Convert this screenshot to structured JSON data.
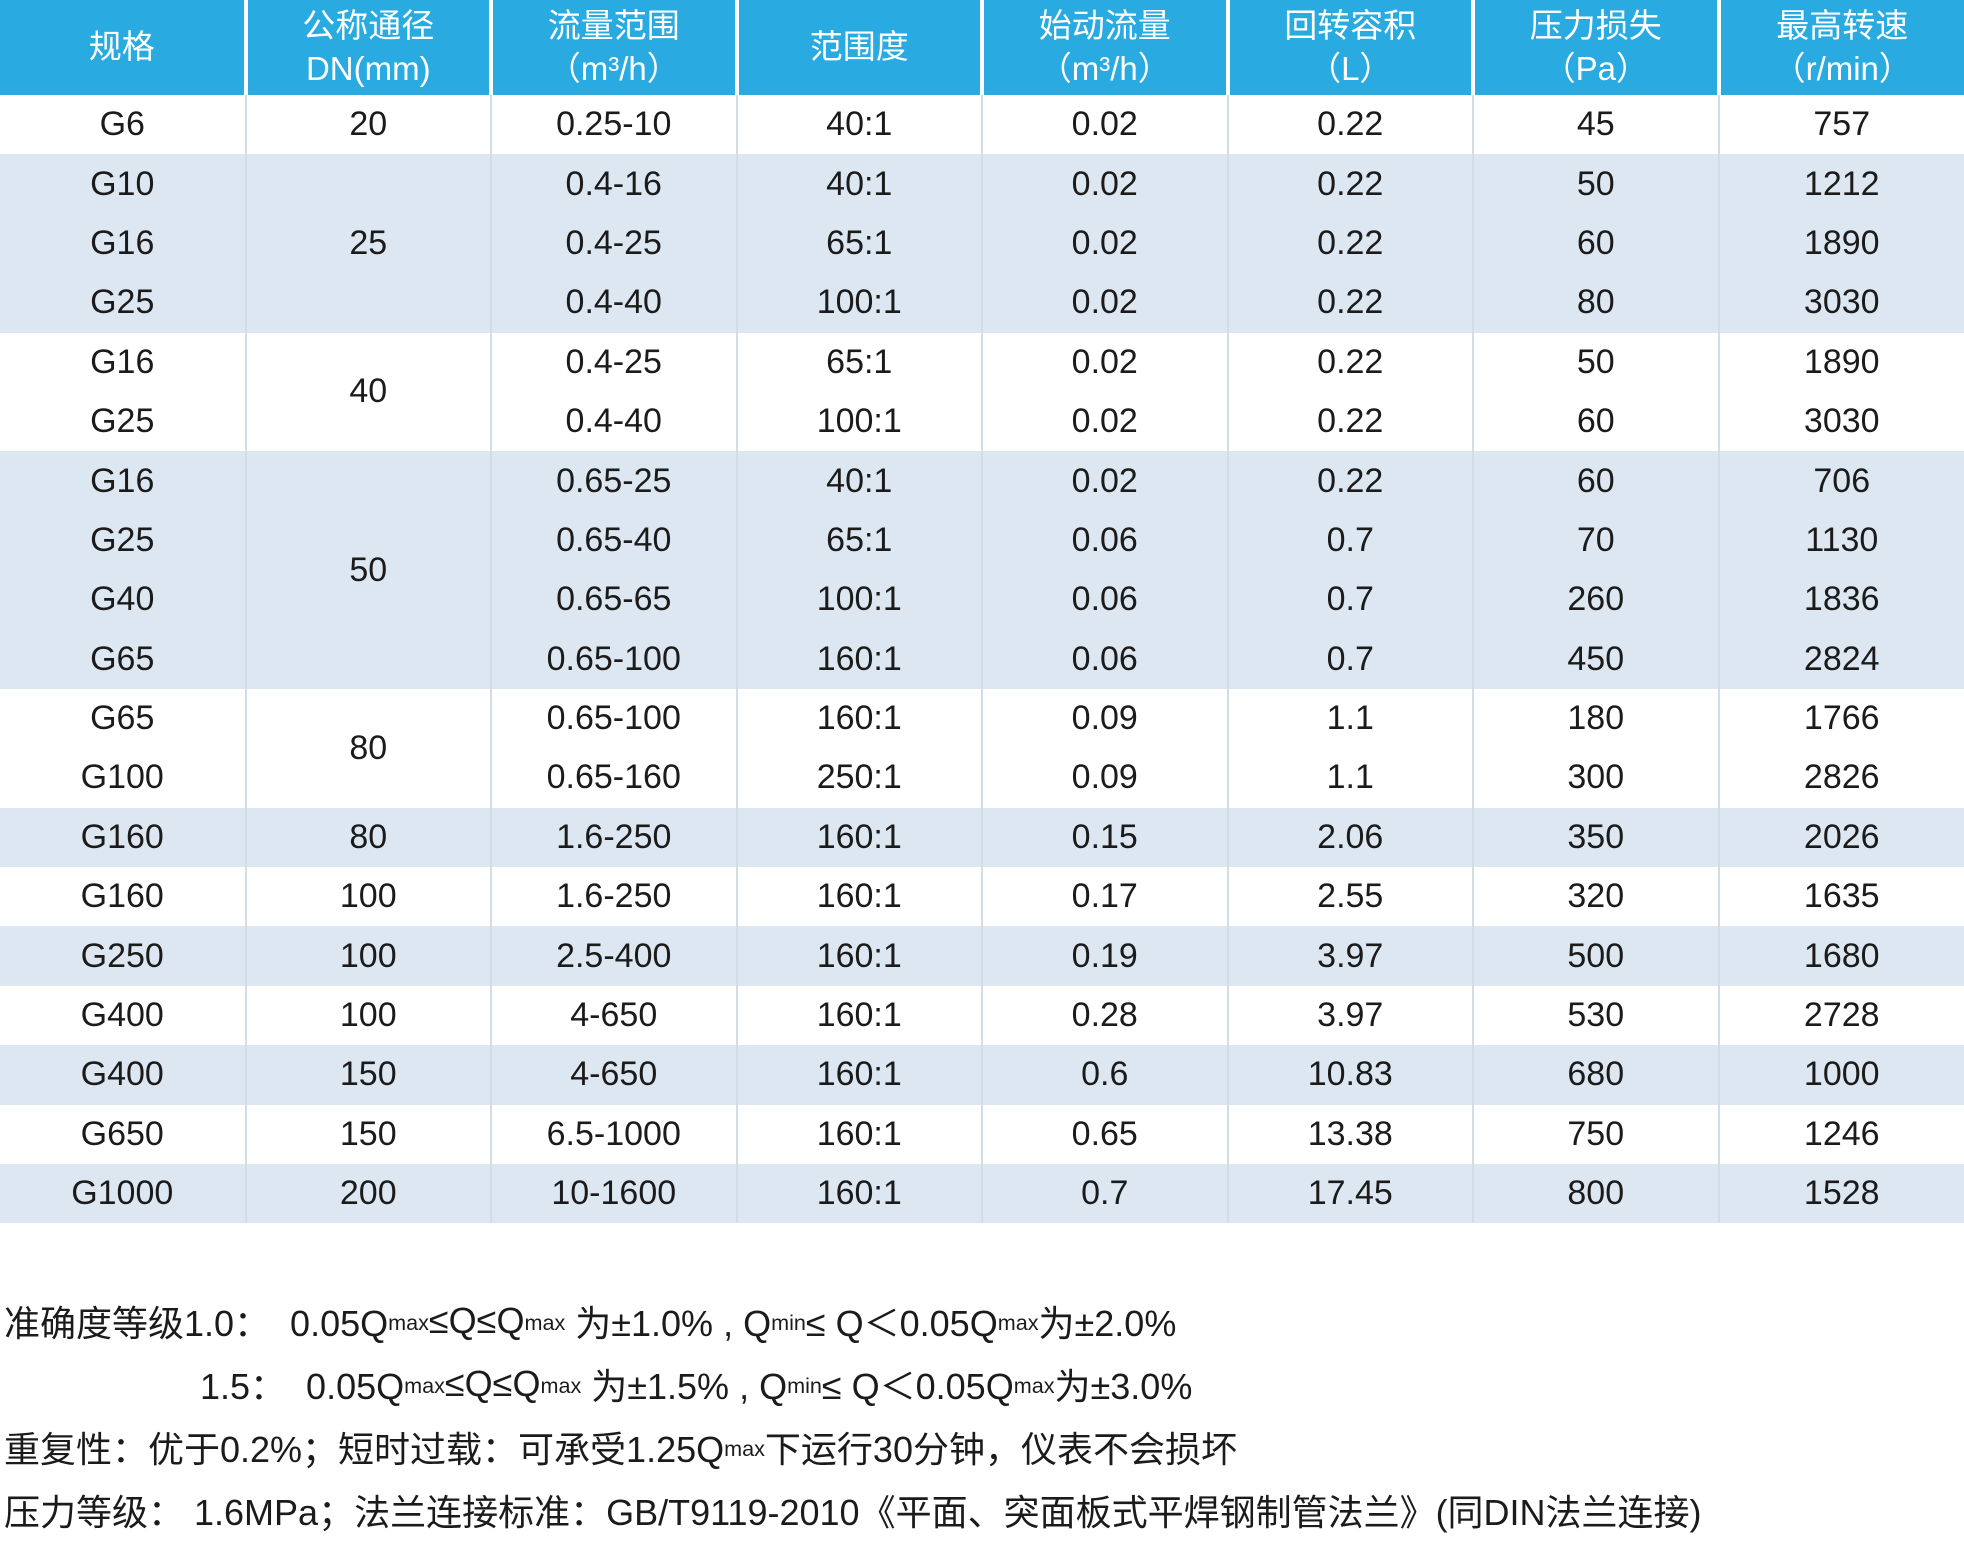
{
  "colors": {
    "header_bg": "#29abe2",
    "header_text": "#ffffff",
    "band_bg": "#dde7f1",
    "row_bg": "#ffffff",
    "body_text": "#1b1b1b",
    "grid_line": "#d4dce4"
  },
  "table": {
    "headers": [
      {
        "line1": "规格",
        "line2": ""
      },
      {
        "line1": "公称通径",
        "line2": "DN(mm)"
      },
      {
        "line1": "流量范围",
        "line2": "（m³/h）"
      },
      {
        "line1": "范围度",
        "line2": ""
      },
      {
        "line1": "始动流量",
        "line2": "（m³/h）"
      },
      {
        "line1": "回转容积",
        "line2": "（L）"
      },
      {
        "line1": "压力损失",
        "line2": "（Pa）"
      },
      {
        "line1": "最高转速",
        "line2": "（r/min）"
      }
    ],
    "groups": [
      {
        "dn": "20",
        "shade": "white",
        "rows": [
          {
            "spec": "G6",
            "flow_range": "0.25-10",
            "rangeability": "40:1",
            "start_flow": "0.02",
            "rotary_volume": "0.22",
            "pressure_loss": "45",
            "max_speed": "757"
          }
        ]
      },
      {
        "dn": "25",
        "shade": "blue",
        "rows": [
          {
            "spec": "G10",
            "flow_range": "0.4-16",
            "rangeability": "40:1",
            "start_flow": "0.02",
            "rotary_volume": "0.22",
            "pressure_loss": "50",
            "max_speed": "1212"
          },
          {
            "spec": "G16",
            "flow_range": "0.4-25",
            "rangeability": "65:1",
            "start_flow": "0.02",
            "rotary_volume": "0.22",
            "pressure_loss": "60",
            "max_speed": "1890"
          },
          {
            "spec": "G25",
            "flow_range": "0.4-40",
            "rangeability": "100:1",
            "start_flow": "0.02",
            "rotary_volume": "0.22",
            "pressure_loss": "80",
            "max_speed": "3030"
          }
        ]
      },
      {
        "dn": "40",
        "shade": "white",
        "rows": [
          {
            "spec": "G16",
            "flow_range": "0.4-25",
            "rangeability": "65:1",
            "start_flow": "0.02",
            "rotary_volume": "0.22",
            "pressure_loss": "50",
            "max_speed": "1890"
          },
          {
            "spec": "G25",
            "flow_range": "0.4-40",
            "rangeability": "100:1",
            "start_flow": "0.02",
            "rotary_volume": "0.22",
            "pressure_loss": "60",
            "max_speed": "3030"
          }
        ]
      },
      {
        "dn": "50",
        "shade": "blue",
        "rows": [
          {
            "spec": "G16",
            "flow_range": "0.65-25",
            "rangeability": "40:1",
            "start_flow": "0.02",
            "rotary_volume": "0.22",
            "pressure_loss": "60",
            "max_speed": "706"
          },
          {
            "spec": "G25",
            "flow_range": "0.65-40",
            "rangeability": "65:1",
            "start_flow": "0.06",
            "rotary_volume": "0.7",
            "pressure_loss": "70",
            "max_speed": "1130"
          },
          {
            "spec": "G40",
            "flow_range": "0.65-65",
            "rangeability": "100:1",
            "start_flow": "0.06",
            "rotary_volume": "0.7",
            "pressure_loss": "260",
            "max_speed": "1836"
          },
          {
            "spec": "G65",
            "flow_range": "0.65-100",
            "rangeability": "160:1",
            "start_flow": "0.06",
            "rotary_volume": "0.7",
            "pressure_loss": "450",
            "max_speed": "2824"
          }
        ]
      },
      {
        "dn": "80",
        "shade": "white",
        "rows": [
          {
            "spec": "G65",
            "flow_range": "0.65-100",
            "rangeability": "160:1",
            "start_flow": "0.09",
            "rotary_volume": "1.1",
            "pressure_loss": "180",
            "max_speed": "1766"
          },
          {
            "spec": "G100",
            "flow_range": "0.65-160",
            "rangeability": "250:1",
            "start_flow": "0.09",
            "rotary_volume": "1.1",
            "pressure_loss": "300",
            "max_speed": "2826"
          }
        ]
      },
      {
        "dn": "80",
        "shade": "blue",
        "rows": [
          {
            "spec": "G160",
            "flow_range": "1.6-250",
            "rangeability": "160:1",
            "start_flow": "0.15",
            "rotary_volume": "2.06",
            "pressure_loss": "350",
            "max_speed": "2026"
          }
        ]
      },
      {
        "dn": "100",
        "shade": "white",
        "rows": [
          {
            "spec": "G160",
            "flow_range": "1.6-250",
            "rangeability": "160:1",
            "start_flow": "0.17",
            "rotary_volume": "2.55",
            "pressure_loss": "320",
            "max_speed": "1635"
          }
        ]
      },
      {
        "dn": "100",
        "shade": "blue",
        "rows": [
          {
            "spec": "G250",
            "flow_range": "2.5-400",
            "rangeability": "160:1",
            "start_flow": "0.19",
            "rotary_volume": "3.97",
            "pressure_loss": "500",
            "max_speed": "1680"
          }
        ]
      },
      {
        "dn": "100",
        "shade": "white",
        "rows": [
          {
            "spec": "G400",
            "flow_range": "4-650",
            "rangeability": "160:1",
            "start_flow": "0.28",
            "rotary_volume": "3.97",
            "pressure_loss": "530",
            "max_speed": "2728"
          }
        ]
      },
      {
        "dn": "150",
        "shade": "blue",
        "rows": [
          {
            "spec": "G400",
            "flow_range": "4-650",
            "rangeability": "160:1",
            "start_flow": "0.6",
            "rotary_volume": "10.83",
            "pressure_loss": "680",
            "max_speed": "1000"
          }
        ]
      },
      {
        "dn": "150",
        "shade": "white",
        "rows": [
          {
            "spec": "G650",
            "flow_range": "6.5-1000",
            "rangeability": "160:1",
            "start_flow": "0.65",
            "rotary_volume": "13.38",
            "pressure_loss": "750",
            "max_speed": "1246"
          }
        ]
      },
      {
        "dn": "200",
        "shade": "blue",
        "rows": [
          {
            "spec": "G1000",
            "flow_range": "10-1600",
            "rangeability": "160:1",
            "start_flow": "0.7",
            "rotary_volume": "17.45",
            "pressure_loss": "800",
            "max_speed": "1528"
          }
        ]
      }
    ]
  },
  "notes": {
    "lines": [
      {
        "indent": false,
        "segments": [
          {
            "t": "准确度等级1.0：  0.05Q"
          },
          {
            "t": "max",
            "sub": true
          },
          {
            "t": "≤Q≤Q"
          },
          {
            "t": "max",
            "sub": true
          },
          {
            "t": " 为±1.0% , Q"
          },
          {
            "t": "min",
            "sub": true
          },
          {
            "t": "≤ Q＜0.05Q"
          },
          {
            "t": "max",
            "sub": true
          },
          {
            "t": "为±2.0%"
          }
        ]
      },
      {
        "indent": true,
        "segments": [
          {
            "t": "1.5：  0.05Q"
          },
          {
            "t": "max",
            "sub": true
          },
          {
            "t": "≤Q≤Q"
          },
          {
            "t": "max",
            "sub": true
          },
          {
            "t": " 为±1.5% , Q"
          },
          {
            "t": "min",
            "sub": true
          },
          {
            "t": "≤ Q＜0.05Q"
          },
          {
            "t": "max",
            "sub": true
          },
          {
            "t": "为±3.0%"
          }
        ]
      },
      {
        "indent": false,
        "segments": [
          {
            "t": "重复性：优于0.2%；短时过载：可承受1.25Q"
          },
          {
            "t": "max",
            "sub": true
          },
          {
            "t": "下运行30分钟，仪表不会损坏"
          }
        ]
      },
      {
        "indent": false,
        "segments": [
          {
            "t": "压力等级： 1.6MPa；法兰连接标准：GB/T9119-2010《平面、突面板式平焊钢制管法兰》(同DIN法兰连接)"
          }
        ]
      }
    ]
  }
}
